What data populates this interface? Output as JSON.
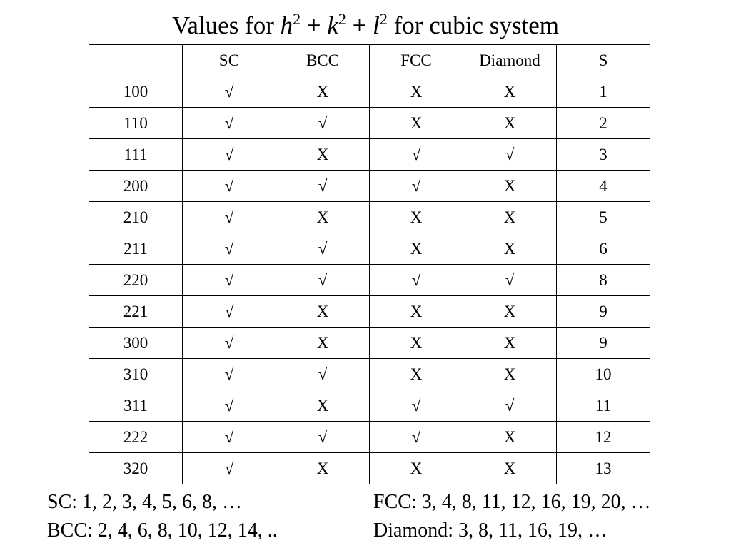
{
  "title": [
    "Values for ",
    "h",
    "2",
    " + ",
    "k",
    "2",
    " + ",
    "l",
    "2",
    " for cubic system"
  ],
  "table": {
    "columns": [
      "SC",
      "BCC",
      "FCC",
      "Diamond",
      "S"
    ],
    "rows": [
      [
        "100",
        "√",
        "X",
        "X",
        "X",
        1
      ],
      [
        "110",
        "√",
        "√",
        "X",
        "X",
        2
      ],
      [
        "111",
        "√",
        "X",
        "√",
        "√",
        3
      ],
      [
        "200",
        "√",
        "√",
        "√",
        "X",
        4
      ],
      [
        "210",
        "√",
        "X",
        "X",
        "X",
        5
      ],
      [
        "211",
        "√",
        "√",
        "X",
        "X",
        6
      ],
      [
        "220",
        "√",
        "√",
        "√",
        "√",
        8
      ],
      [
        "221",
        "√",
        "X",
        "X",
        "X",
        9
      ],
      [
        "300",
        "√",
        "X",
        "X",
        "X",
        9
      ],
      [
        "310",
        "√",
        "√",
        "X",
        "X",
        10
      ],
      [
        "311",
        "√",
        "X",
        "√",
        "√",
        11
      ],
      [
        "222",
        "√",
        "√",
        "√",
        "X",
        12
      ],
      [
        "320",
        "√",
        "X",
        "X",
        "X",
        13
      ]
    ]
  },
  "notes": [
    "SC: 1, 2, 3, 4, 5, 6, 8, …",
    "FCC: 3, 4, 8, 11, 12, 16, 19, 20, …",
    "BCC: 2, 4, 6, 8, 10, 12, 14, ..",
    "Diamond: 3, 8, 11, 16, 19, …"
  ]
}
